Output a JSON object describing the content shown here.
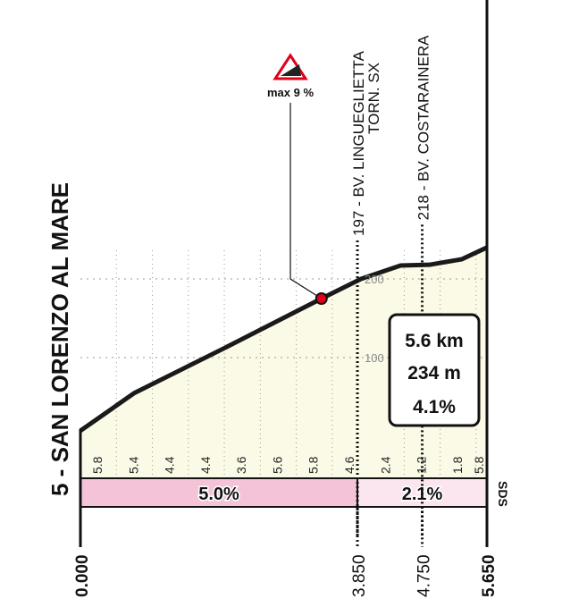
{
  "title": "5 - SAN LORENZO AL MARE",
  "max_gradient": "max 9 %",
  "waypoints": [
    {
      "km": 3.85,
      "label_line1": "197 - BV. LINGUEGLIETTA",
      "label_line2": "TORN. SX"
    },
    {
      "km": 4.75,
      "label_line1": "218 - BV. COSTARAINERA",
      "label_line2": ""
    }
  ],
  "summary": {
    "distance": "5.6 km",
    "gain": "234 m",
    "avg_gradient": "4.1%"
  },
  "elevation_ticks": [
    "100",
    "200"
  ],
  "segment_gradients": [
    "5.8",
    "5.4",
    "4.4",
    "4.4",
    "3.6",
    "5.6",
    "5.8",
    "4.6",
    "2.4",
    "1.2",
    "1.8",
    "5.8"
  ],
  "sections": [
    {
      "from_km": 0,
      "to_km": 3.85,
      "label": "5.0%",
      "color": "#f4c3d8"
    },
    {
      "from_km": 3.85,
      "to_km": 5.65,
      "label": "2.1%",
      "color": "#fbe6ef"
    }
  ],
  "km_labels": [
    "0.000",
    "3.850",
    "4.750",
    "5.650"
  ],
  "end_label": "SDS",
  "profile": [
    [
      0,
      7
    ],
    [
      0.75,
      55
    ],
    [
      2,
      112
    ],
    [
      3.35,
      175
    ],
    [
      3.9,
      200
    ],
    [
      4.45,
      217
    ],
    [
      4.85,
      218
    ],
    [
      5.3,
      225
    ],
    [
      5.65,
      240
    ]
  ],
  "max_point_km": 3.35,
  "colors": {
    "fill": "#fafae6",
    "line": "#1a1a1a",
    "marker": "#e0001a"
  }
}
